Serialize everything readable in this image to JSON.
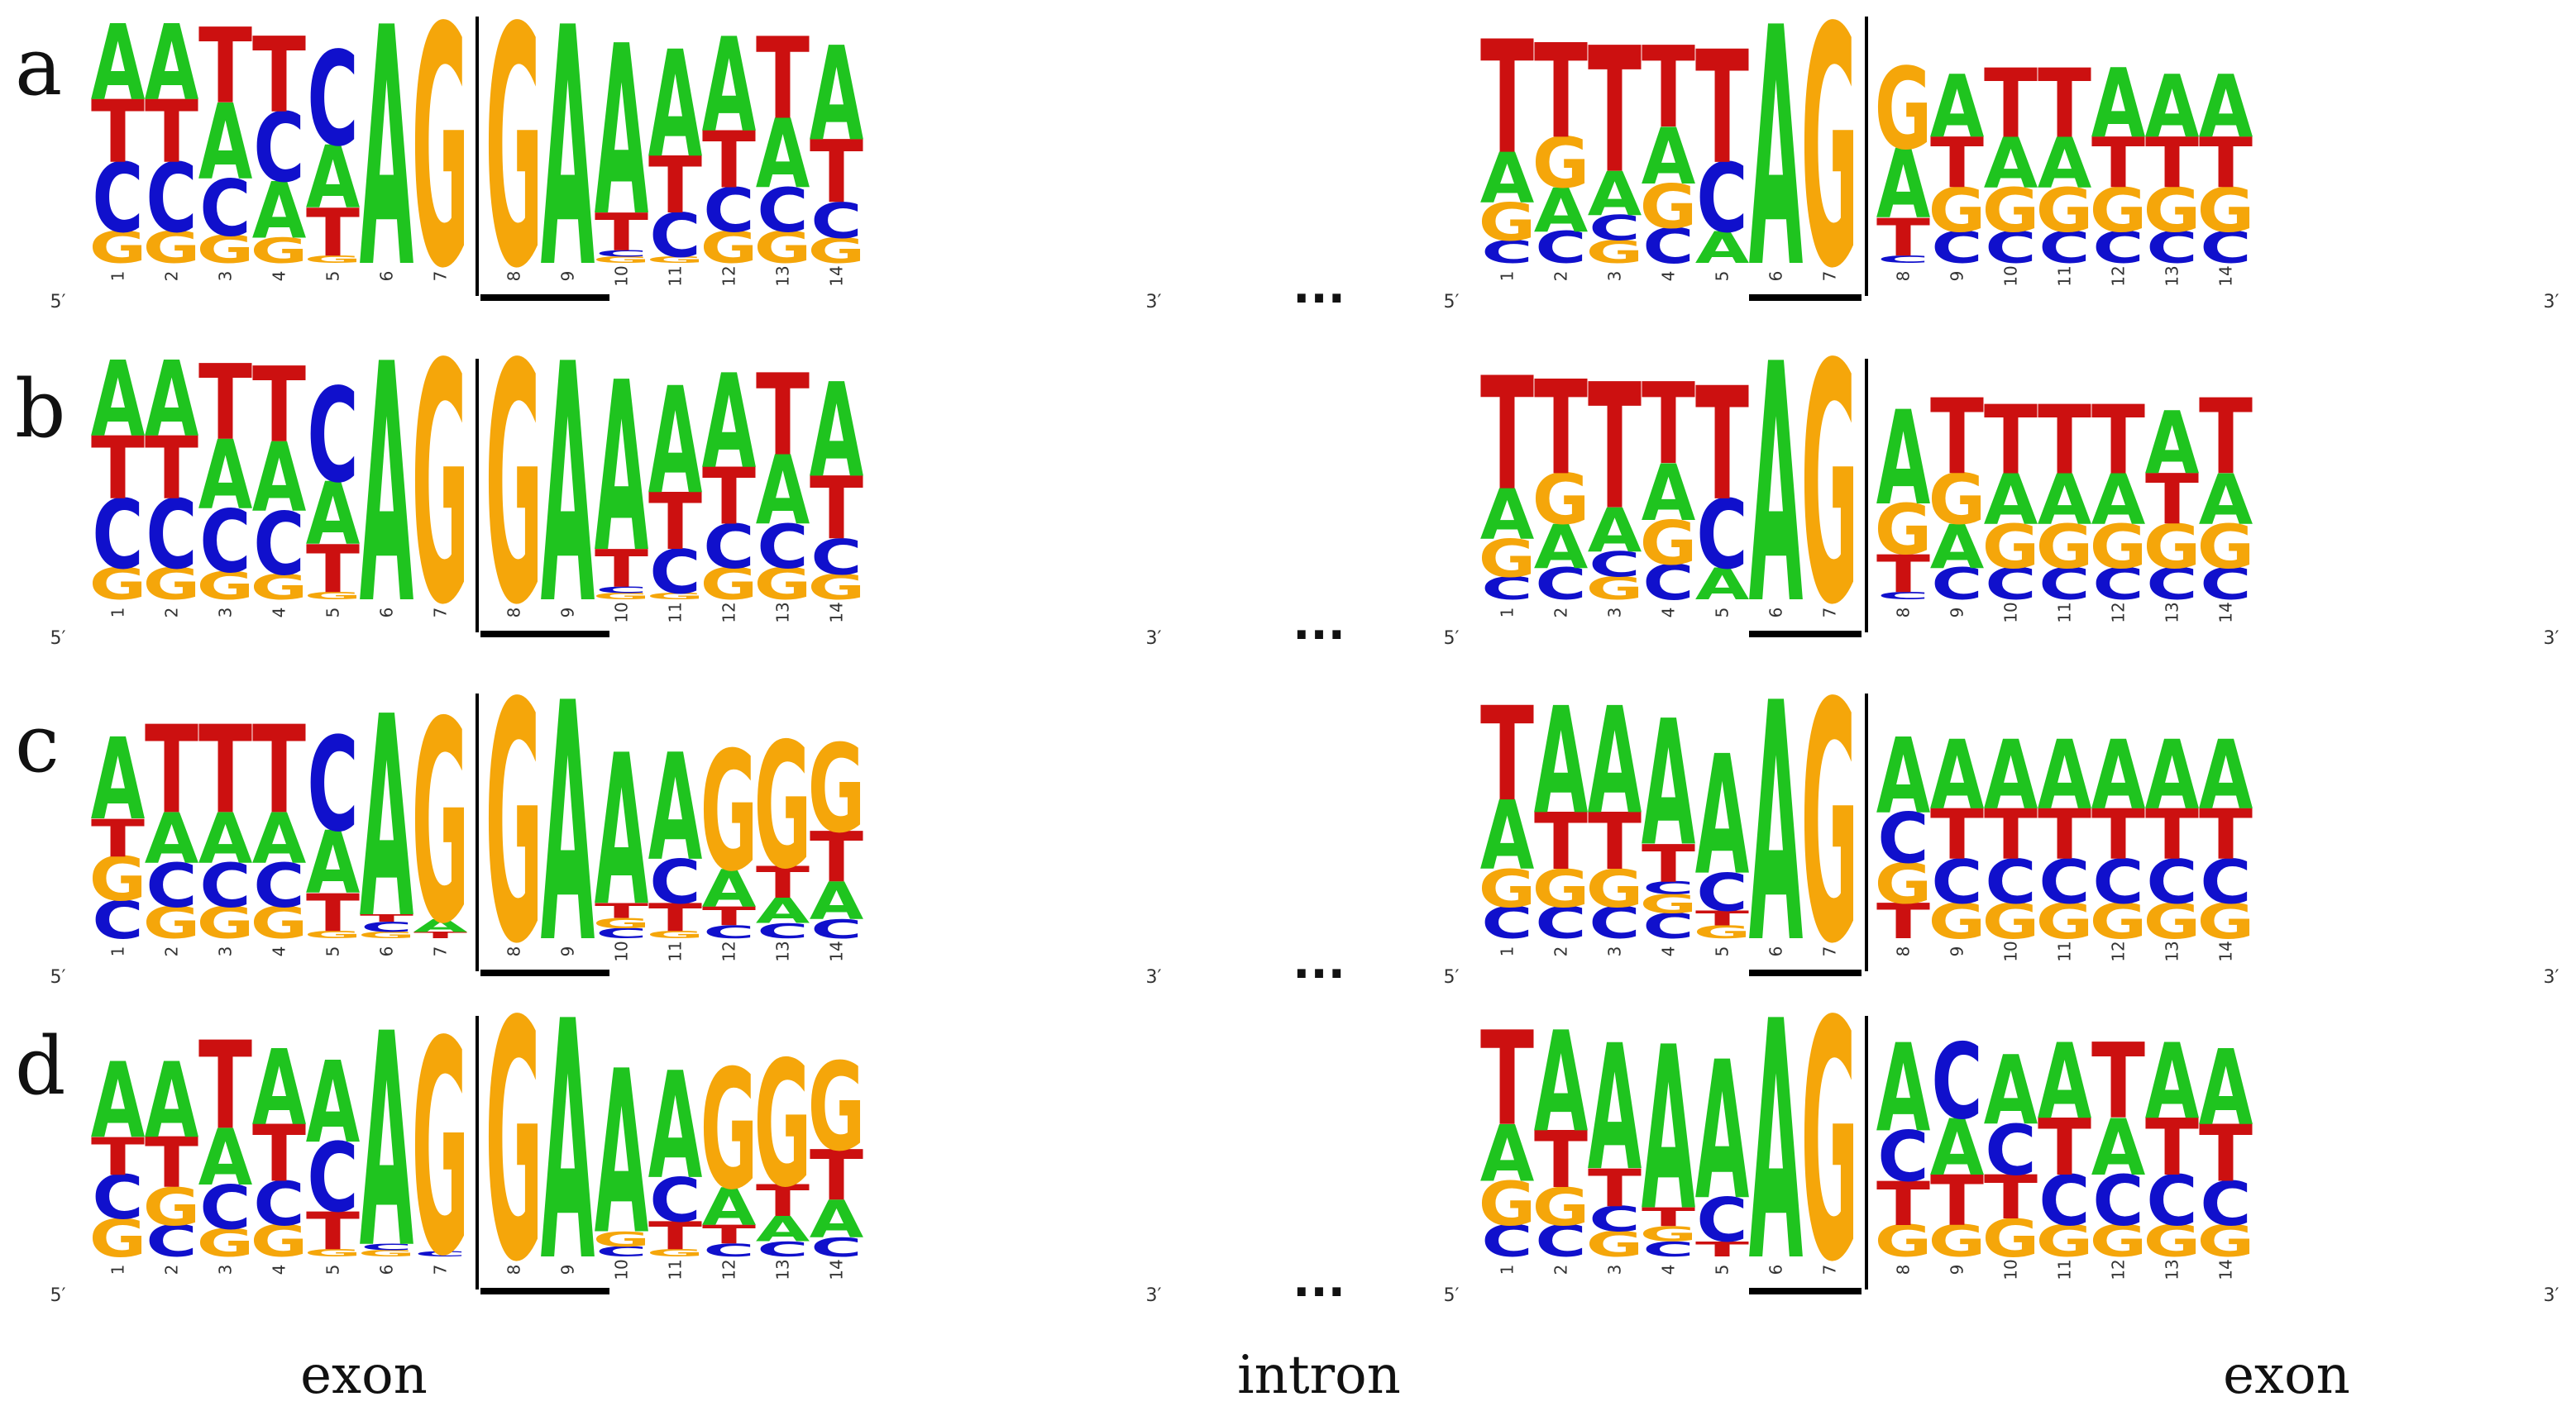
{
  "panels": [
    {
      "label": "a",
      "left": {
        "stacks": [
          [
            "G",
            "C",
            "T",
            "A"
          ],
          [
            "G",
            "C",
            "T",
            "A"
          ],
          [
            "G",
            "C",
            "A",
            "T"
          ],
          [
            "G",
            "A",
            "C",
            "T"
          ],
          [
            "G",
            "T",
            "A",
            "C"
          ],
          [
            "A"
          ],
          [
            "G"
          ],
          [
            "G"
          ],
          [
            "A"
          ],
          [
            "G",
            "C",
            "T",
            "A"
          ],
          [
            "G",
            "C",
            "T",
            "A"
          ],
          [
            "G",
            "C",
            "T",
            "A"
          ],
          [
            "G",
            "C",
            "A",
            "T"
          ],
          [
            "G",
            "C",
            "T",
            "A"
          ]
        ],
        "values": [
          [
            0.25,
            0.55,
            0.5,
            0.6
          ],
          [
            0.25,
            0.55,
            0.5,
            0.6
          ],
          [
            0.22,
            0.45,
            0.6,
            0.6
          ],
          [
            0.2,
            0.45,
            0.55,
            0.6
          ],
          [
            0.06,
            0.38,
            0.5,
            0.75
          ],
          [
            1.9
          ],
          [
            1.9
          ],
          [
            1.9
          ],
          [
            1.9
          ],
          [
            0.05,
            0.05,
            0.3,
            1.35
          ],
          [
            0.05,
            0.35,
            0.45,
            0.85
          ],
          [
            0.25,
            0.35,
            0.45,
            0.75
          ],
          [
            0.25,
            0.35,
            0.55,
            0.65
          ],
          [
            0.2,
            0.28,
            0.5,
            0.75
          ]
        ]
      },
      "right": {
        "stacks": [
          [
            "C",
            "G",
            "A",
            "T"
          ],
          [
            "C",
            "A",
            "G",
            "T"
          ],
          [
            "G",
            "C",
            "A",
            "T"
          ],
          [
            "C",
            "G",
            "A",
            "T"
          ],
          [
            "A",
            "C",
            "T"
          ],
          [
            "A"
          ],
          [
            "G"
          ],
          [
            "C",
            "T",
            "A",
            "G"
          ],
          [
            "C",
            "G",
            "T",
            "A"
          ],
          [
            "C",
            "G",
            "A",
            "T"
          ],
          [
            "C",
            "G",
            "A",
            "T"
          ],
          [
            "C",
            "G",
            "T",
            "A"
          ],
          [
            "C",
            "G",
            "T",
            "A"
          ],
          [
            "C",
            "G",
            "T",
            "A"
          ]
        ],
        "values": [
          [
            0.18,
            0.3,
            0.4,
            0.9
          ],
          [
            0.25,
            0.35,
            0.4,
            0.75
          ],
          [
            0.18,
            0.2,
            0.35,
            1.0
          ],
          [
            0.28,
            0.35,
            0.45,
            0.65
          ],
          [
            0.25,
            0.55,
            0.9
          ],
          [
            1.9
          ],
          [
            1.9
          ],
          [
            0.06,
            0.3,
            0.55,
            0.65
          ],
          [
            0.25,
            0.35,
            0.4,
            0.5
          ],
          [
            0.25,
            0.35,
            0.4,
            0.55
          ],
          [
            0.25,
            0.35,
            0.4,
            0.55
          ],
          [
            0.25,
            0.35,
            0.4,
            0.55
          ],
          [
            0.25,
            0.35,
            0.4,
            0.5
          ],
          [
            0.25,
            0.35,
            0.4,
            0.5
          ]
        ]
      }
    },
    {
      "label": "b",
      "left": {
        "stacks": [
          [
            "G",
            "C",
            "T",
            "A"
          ],
          [
            "G",
            "C",
            "T",
            "A"
          ],
          [
            "G",
            "C",
            "A",
            "T"
          ],
          [
            "G",
            "C",
            "A",
            "T"
          ],
          [
            "G",
            "T",
            "A",
            "C"
          ],
          [
            "A"
          ],
          [
            "G"
          ],
          [
            "G"
          ],
          [
            "A"
          ],
          [
            "G",
            "C",
            "T",
            "A"
          ],
          [
            "G",
            "C",
            "T",
            "A"
          ],
          [
            "G",
            "C",
            "T",
            "A"
          ],
          [
            "G",
            "C",
            "A",
            "T"
          ],
          [
            "G",
            "C",
            "T",
            "A"
          ]
        ],
        "values": [
          [
            0.25,
            0.55,
            0.5,
            0.6
          ],
          [
            0.25,
            0.55,
            0.5,
            0.6
          ],
          [
            0.22,
            0.5,
            0.55,
            0.6
          ],
          [
            0.2,
            0.5,
            0.55,
            0.6
          ],
          [
            0.06,
            0.38,
            0.5,
            0.75
          ],
          [
            1.9
          ],
          [
            1.9
          ],
          [
            1.9
          ],
          [
            1.9
          ],
          [
            0.05,
            0.05,
            0.3,
            1.35
          ],
          [
            0.05,
            0.35,
            0.45,
            0.85
          ],
          [
            0.25,
            0.35,
            0.45,
            0.75
          ],
          [
            0.25,
            0.35,
            0.55,
            0.65
          ],
          [
            0.2,
            0.28,
            0.5,
            0.75
          ]
        ]
      },
      "right": {
        "stacks": [
          [
            "C",
            "G",
            "A",
            "T"
          ],
          [
            "C",
            "A",
            "G",
            "T"
          ],
          [
            "G",
            "C",
            "A",
            "T"
          ],
          [
            "C",
            "G",
            "A",
            "T"
          ],
          [
            "A",
            "C",
            "T"
          ],
          [
            "A"
          ],
          [
            "G"
          ],
          [
            "C",
            "T",
            "G",
            "A"
          ],
          [
            "C",
            "A",
            "G",
            "T"
          ],
          [
            "C",
            "G",
            "A",
            "T"
          ],
          [
            "C",
            "G",
            "A",
            "T"
          ],
          [
            "C",
            "G",
            "A",
            "T"
          ],
          [
            "C",
            "G",
            "T",
            "A"
          ],
          [
            "C",
            "G",
            "A",
            "T"
          ]
        ],
        "values": [
          [
            0.18,
            0.3,
            0.4,
            0.9
          ],
          [
            0.25,
            0.35,
            0.4,
            0.75
          ],
          [
            0.18,
            0.2,
            0.35,
            1.0
          ],
          [
            0.28,
            0.35,
            0.45,
            0.65
          ],
          [
            0.25,
            0.55,
            0.9
          ],
          [
            1.9
          ],
          [
            1.9
          ],
          [
            0.06,
            0.3,
            0.4,
            0.75
          ],
          [
            0.25,
            0.35,
            0.4,
            0.6
          ],
          [
            0.25,
            0.35,
            0.4,
            0.55
          ],
          [
            0.25,
            0.35,
            0.4,
            0.55
          ],
          [
            0.25,
            0.35,
            0.4,
            0.55
          ],
          [
            0.25,
            0.35,
            0.4,
            0.5
          ],
          [
            0.25,
            0.35,
            0.4,
            0.6
          ]
        ]
      }
    },
    {
      "label": "c",
      "left": {
        "stacks": [
          [
            "C",
            "G",
            "T",
            "A"
          ],
          [
            "G",
            "C",
            "A",
            "T"
          ],
          [
            "G",
            "C",
            "A",
            "T"
          ],
          [
            "G",
            "C",
            "A",
            "T"
          ],
          [
            "G",
            "T",
            "A",
            "C"
          ],
          [
            "G",
            "C",
            "T",
            "A"
          ],
          [
            "T",
            "A",
            "G"
          ],
          [
            "G"
          ],
          [
            "A"
          ],
          [
            "C",
            "G",
            "T",
            "A"
          ],
          [
            "G",
            "T",
            "C",
            "A"
          ],
          [
            "C",
            "T",
            "A",
            "G"
          ],
          [
            "C",
            "A",
            "T",
            "G"
          ],
          [
            "C",
            "A",
            "T",
            "G"
          ]
        ],
        "values": [
          [
            0.3,
            0.35,
            0.3,
            0.65
          ],
          [
            0.25,
            0.35,
            0.4,
            0.7
          ],
          [
            0.25,
            0.35,
            0.4,
            0.7
          ],
          [
            0.25,
            0.35,
            0.4,
            0.7
          ],
          [
            0.06,
            0.3,
            0.5,
            0.75
          ],
          [
            0.05,
            0.08,
            0.06,
            1.6
          ],
          [
            0.05,
            0.1,
            1.6
          ],
          [
            1.9
          ],
          [
            1.9
          ],
          [
            0.08,
            0.08,
            0.12,
            1.2
          ],
          [
            0.06,
            0.22,
            0.35,
            0.85
          ],
          [
            0.1,
            0.15,
            0.3,
            0.95
          ],
          [
            0.12,
            0.2,
            0.25,
            1.0
          ],
          [
            0.15,
            0.3,
            0.4,
            0.7
          ]
        ]
      },
      "right": {
        "stacks": [
          [
            "C",
            "G",
            "A",
            "T"
          ],
          [
            "C",
            "G",
            "T",
            "A"
          ],
          [
            "C",
            "G",
            "T",
            "A"
          ],
          [
            "C",
            "G",
            "C",
            "T",
            "A"
          ],
          [
            "G",
            "T",
            "C",
            "A"
          ],
          [
            "A"
          ],
          [
            "G"
          ],
          [
            "T",
            "G",
            "C",
            "A"
          ],
          [
            "G",
            "C",
            "T",
            "A"
          ],
          [
            "G",
            "C",
            "T",
            "A"
          ],
          [
            "G",
            "C",
            "T",
            "A"
          ],
          [
            "G",
            "C",
            "T",
            "A"
          ],
          [
            "G",
            "C",
            "T",
            "A"
          ],
          [
            "G",
            "C",
            "T",
            "A"
          ]
        ],
        "values": [
          [
            0.25,
            0.3,
            0.55,
            0.75
          ],
          [
            0.25,
            0.3,
            0.45,
            0.85
          ],
          [
            0.25,
            0.3,
            0.45,
            0.85
          ],
          [
            0.2,
            0.15,
            0.1,
            0.3,
            1.0
          ],
          [
            0.1,
            0.12,
            0.3,
            0.95
          ],
          [
            1.9
          ],
          [
            1.9
          ],
          [
            0.28,
            0.32,
            0.4,
            0.6
          ],
          [
            0.28,
            0.35,
            0.4,
            0.55
          ],
          [
            0.28,
            0.35,
            0.4,
            0.55
          ],
          [
            0.28,
            0.35,
            0.4,
            0.55
          ],
          [
            0.28,
            0.35,
            0.4,
            0.55
          ],
          [
            0.28,
            0.35,
            0.4,
            0.55
          ],
          [
            0.28,
            0.35,
            0.4,
            0.55
          ]
        ]
      }
    },
    {
      "label": "d",
      "left": {
        "stacks": [
          [
            "G",
            "C",
            "T",
            "A"
          ],
          [
            "C",
            "G",
            "T",
            "A"
          ],
          [
            "G",
            "C",
            "A",
            "T"
          ],
          [
            "G",
            "C",
            "T",
            "A"
          ],
          [
            "G",
            "T",
            "C",
            "A"
          ],
          [
            "G",
            "C",
            "A"
          ],
          [
            "C",
            "G"
          ],
          [
            "G"
          ],
          [
            "A"
          ],
          [
            "C",
            "G",
            "A"
          ],
          [
            "G",
            "T",
            "C",
            "A"
          ],
          [
            "C",
            "T",
            "A",
            "G"
          ],
          [
            "C",
            "A",
            "T",
            "G"
          ],
          [
            "C",
            "A",
            "T",
            "G"
          ]
        ],
        "values": [
          [
            0.3,
            0.35,
            0.3,
            0.6
          ],
          [
            0.25,
            0.3,
            0.4,
            0.6
          ],
          [
            0.22,
            0.35,
            0.45,
            0.7
          ],
          [
            0.25,
            0.35,
            0.45,
            0.6
          ],
          [
            0.06,
            0.3,
            0.55,
            0.65
          ],
          [
            0.05,
            0.05,
            1.7
          ],
          [
            0.04,
            1.7
          ],
          [
            1.9
          ],
          [
            1.9
          ],
          [
            0.08,
            0.12,
            1.3
          ],
          [
            0.06,
            0.22,
            0.35,
            0.85
          ],
          [
            0.1,
            0.15,
            0.3,
            0.95
          ],
          [
            0.12,
            0.2,
            0.25,
            1.0
          ],
          [
            0.15,
            0.3,
            0.4,
            0.7
          ]
        ]
      },
      "right": {
        "stacks": [
          [
            "C",
            "G",
            "A",
            "T"
          ],
          [
            "C",
            "G",
            "T",
            "A"
          ],
          [
            "G",
            "C",
            "T",
            "A"
          ],
          [
            "C",
            "G",
            "T",
            "A"
          ],
          [
            "T",
            "C",
            "A"
          ],
          [
            "A"
          ],
          [
            "G"
          ],
          [
            "G",
            "T",
            "C",
            "A"
          ],
          [
            "G",
            "T",
            "A",
            "C"
          ],
          [
            "G",
            "T",
            "C",
            "A"
          ],
          [
            "G",
            "C",
            "T",
            "A"
          ],
          [
            "G",
            "C",
            "A",
            "T"
          ],
          [
            "G",
            "C",
            "T",
            "A"
          ],
          [
            "G",
            "C",
            "T",
            "A"
          ]
        ],
        "values": [
          [
            0.25,
            0.35,
            0.45,
            0.75
          ],
          [
            0.25,
            0.3,
            0.45,
            0.8
          ],
          [
            0.2,
            0.2,
            0.3,
            1.0
          ],
          [
            0.12,
            0.12,
            0.15,
            1.3
          ],
          [
            0.12,
            0.35,
            1.1
          ],
          [
            1.9
          ],
          [
            1.9
          ],
          [
            0.25,
            0.35,
            0.4,
            0.7
          ],
          [
            0.25,
            0.4,
            0.45,
            0.6
          ],
          [
            0.3,
            0.35,
            0.4,
            0.55
          ],
          [
            0.25,
            0.4,
            0.45,
            0.6
          ],
          [
            0.25,
            0.4,
            0.45,
            0.6
          ],
          [
            0.25,
            0.4,
            0.45,
            0.6
          ],
          [
            0.25,
            0.35,
            0.45,
            0.6
          ]
        ]
      }
    }
  ],
  "positions_left": [
    "1",
    "2",
    "3",
    "4",
    "5",
    "6",
    "7",
    "8",
    "9",
    "10",
    "11",
    "12",
    "13",
    "14"
  ],
  "positions_right": [
    "1",
    "2",
    "3",
    "4",
    "5",
    "6",
    "7",
    "8",
    "9",
    "10",
    "11",
    "12",
    "13",
    "14"
  ],
  "end_labels": {
    "five_prime": "5′",
    "three_prime": "3′"
  },
  "ellipsis": "...",
  "region_labels": {
    "exon_left": "exon",
    "intron": "intron",
    "exon_right": "exon"
  },
  "colors": {
    "A": "#1fc41f",
    "C": "#1010cc",
    "G": "#f5a60a",
    "T": "#cc1010"
  }
}
